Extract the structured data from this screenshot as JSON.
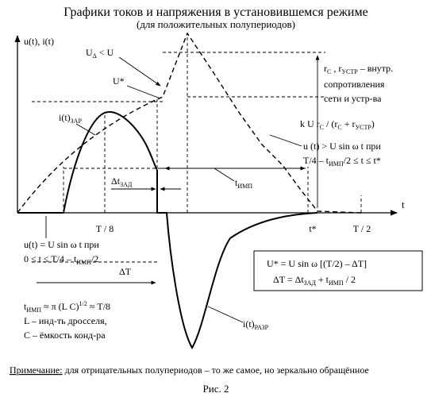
{
  "title": "Графики токов и напряжения в установившемся режиме",
  "subtitle": "(для положительных полупериодов)",
  "y_axis_label": "u(t), i(t)",
  "x_axis_label": "t",
  "x_ticks": {
    "t8": "T / 8",
    "tstar": "t*",
    "t2": "T / 2"
  },
  "labels": {
    "ud_base": "U",
    "ud_sub": "Δ",
    "ud_rest": " < U",
    "ustar": "U*",
    "izar_base": "i(t)",
    "izar_sub": "ЗАР",
    "dtzad_base": "Δt",
    "dtzad_sub": "ЗАД",
    "timp_base": "t",
    "timp_sub": "ИМП",
    "dT": "ΔT",
    "irazr_base": "i(t)",
    "irazr_sub": "РАЗР"
  },
  "resist_note": {
    "line1_a": "r",
    "line1_a_sub": "C",
    "line1_b": " , r",
    "line1_b_sub": "УСТР",
    "line1_c": " – внутр.",
    "line2": "сопротивления",
    "line3": "сети и устр-ва",
    "formula_a": "k U r",
    "formula_a_sub": "C",
    "formula_b": " / (r",
    "formula_b_sub": "C",
    "formula_c": " + r",
    "formula_c_sub": "УСТР",
    "formula_d": ")"
  },
  "cond_right": {
    "line1": "u (t) > U sin ω t при",
    "line2_a": "T/4 – t",
    "line2_sub": "ИМП",
    "line2_b": "/2 ≤ t ≤ t*"
  },
  "cond_left": {
    "line1": "u(t) = U sin ω t  при",
    "line2_a": "0 ≤ t ≤ T/4 – t",
    "line2_sub": "ИМП",
    "line2_b": "/2"
  },
  "formula_box": {
    "line1": "U* = U sin ω [(T/2) – ΔT]",
    "line2_a": "ΔT = Δt",
    "line2_sub1": "ЗАД",
    "line2_b": " + t",
    "line2_sub2": "ИМП",
    "line2_c": " / 2"
  },
  "timp_note": {
    "line1_a": "t",
    "line1_sub": "ИМП",
    "line1_b": " ≈ π (L C)",
    "line1_sup": "1/2",
    "line1_c": " ≈ T/8",
    "line2": "L – инд-ть дросселя,",
    "line3": "C – ёмкость конд-ра"
  },
  "note": {
    "label": "Примечание:",
    "text": " для отрицательных полупериодов – то же самое, но зеркально обращённое"
  },
  "caption": "Рис. 2"
}
